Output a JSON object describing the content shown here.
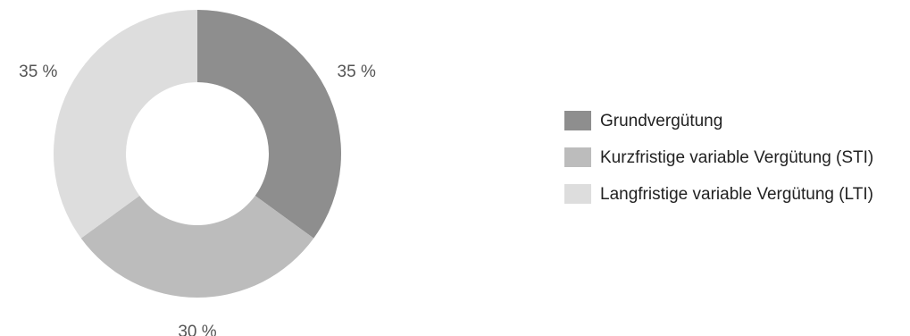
{
  "chart_data": {
    "type": "pie",
    "donut": true,
    "categories": [
      "Grundvergütung",
      "Kurzfristige variable Vergütung (STI)",
      "Langfristige variable Vergütung (LTI)"
    ],
    "values": [
      35,
      30,
      35
    ],
    "value_labels": [
      "35 %",
      "30 %",
      "35 %"
    ],
    "colors": [
      "#8e8e8e",
      "#bcbcbc",
      "#dddddd"
    ],
    "start_angle_deg": 0,
    "direction": "clockwise",
    "legend_position": "right",
    "title": "",
    "xlabel": "",
    "ylabel": ""
  }
}
